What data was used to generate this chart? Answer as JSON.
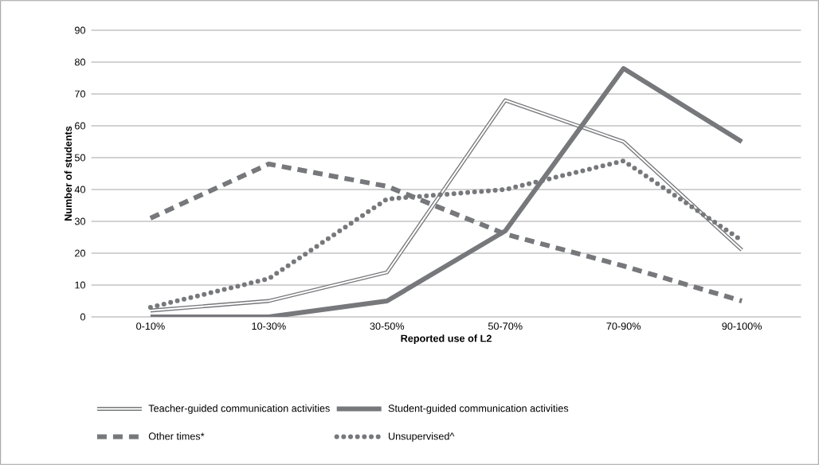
{
  "chart_data": {
    "type": "line",
    "xlabel": "Reported use of L2",
    "ylabel": "Number of students",
    "categories": [
      "0-10%",
      "10-30%",
      "30-50%",
      "50-70%",
      "70-90%",
      "90-100%"
    ],
    "series": [
      {
        "name": "Teacher-guided communication activities",
        "color": "#77787b",
        "line_style": "solid",
        "values": [
          2,
          5,
          14,
          68,
          55,
          21
        ]
      },
      {
        "name": "Student-guided communication activities",
        "color": "#77787b",
        "line_style": "solid",
        "values": [
          0,
          0,
          5,
          27,
          78,
          55
        ]
      },
      {
        "name": "Other times*",
        "color": "#77787b",
        "line_style": "dashed",
        "values": [
          31,
          48,
          41,
          26,
          16,
          5
        ]
      },
      {
        "name": "Unsupervised^",
        "color": "#77787b",
        "line_style": "dotted",
        "values": [
          3,
          12,
          37,
          40,
          49,
          24
        ]
      }
    ],
    "ylim": [
      0,
      90
    ],
    "yticks": [
      0,
      10,
      20,
      30,
      40,
      50,
      60,
      70,
      80,
      90
    ],
    "grid": "y",
    "legend": "bottom",
    "marker": "none"
  }
}
